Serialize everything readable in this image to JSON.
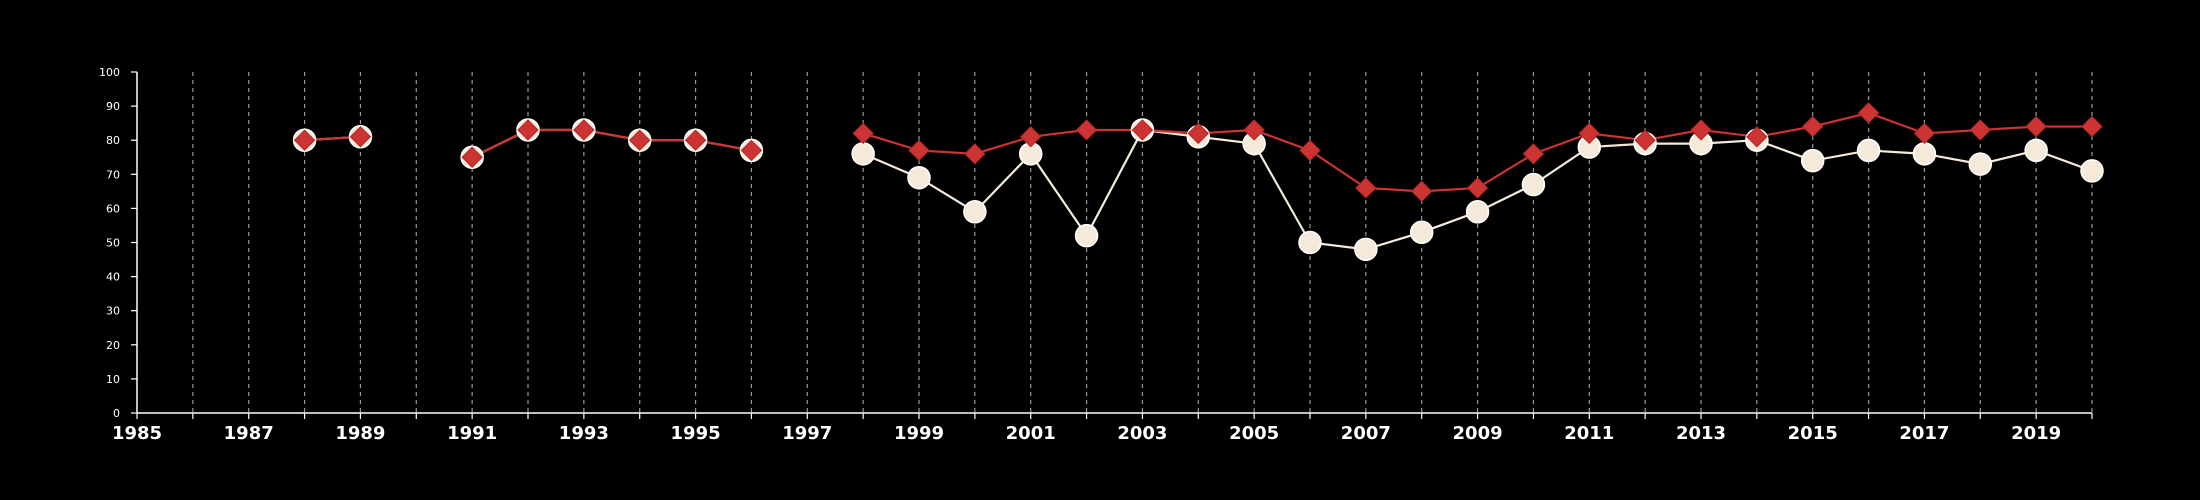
{
  "chart_data": {
    "type": "line",
    "title": "",
    "xlabel": "",
    "ylabel": "",
    "xlim": [
      1985,
      2020
    ],
    "ylim": [
      0,
      100
    ],
    "y_ticks": [
      0,
      10,
      20,
      30,
      40,
      50,
      60,
      70,
      80,
      90,
      100
    ],
    "x_tick_labels": [
      1985,
      1987,
      1989,
      1991,
      1993,
      1995,
      1997,
      1999,
      2001,
      2003,
      2005,
      2007,
      2009,
      2011,
      2013,
      2015,
      2017,
      2019
    ],
    "vertical_gridlines": "dashed, every year",
    "legend": "none",
    "series": [
      {
        "marker": "diamond",
        "color": "#cc3333",
        "points": [
          [
            1988,
            80
          ],
          [
            1989,
            81
          ],
          [
            1991,
            75
          ],
          [
            1992,
            83
          ],
          [
            1993,
            83
          ],
          [
            1994,
            80
          ],
          [
            1995,
            80
          ],
          [
            1996,
            77
          ],
          [
            1998,
            82
          ],
          [
            1999,
            77
          ],
          [
            2000,
            76
          ],
          [
            2001,
            81
          ],
          [
            2002,
            83
          ],
          [
            2003,
            83
          ],
          [
            2004,
            82
          ],
          [
            2005,
            83
          ],
          [
            2006,
            77
          ],
          [
            2007,
            66
          ],
          [
            2008,
            65
          ],
          [
            2009,
            66
          ],
          [
            2010,
            76
          ],
          [
            2011,
            82
          ],
          [
            2012,
            80
          ],
          [
            2013,
            83
          ],
          [
            2014,
            81
          ],
          [
            2015,
            84
          ],
          [
            2016,
            88
          ],
          [
            2017,
            82
          ],
          [
            2018,
            83
          ],
          [
            2019,
            84
          ],
          [
            2020,
            84
          ]
        ]
      },
      {
        "marker": "circle",
        "color": "#f5ead9",
        "points": [
          [
            1988,
            80
          ],
          [
            1989,
            81
          ],
          [
            1991,
            75
          ],
          [
            1992,
            83
          ],
          [
            1993,
            83
          ],
          [
            1994,
            80
          ],
          [
            1995,
            80
          ],
          [
            1996,
            77
          ],
          [
            1998,
            76
          ],
          [
            1999,
            69
          ],
          [
            2000,
            59
          ],
          [
            2001,
            76
          ],
          [
            2002,
            52
          ],
          [
            2003,
            83
          ],
          [
            2004,
            81
          ],
          [
            2005,
            79
          ],
          [
            2006,
            50
          ],
          [
            2007,
            48
          ],
          [
            2008,
            53
          ],
          [
            2009,
            59
          ],
          [
            2010,
            67
          ],
          [
            2011,
            78
          ],
          [
            2012,
            79
          ],
          [
            2013,
            79
          ],
          [
            2014,
            80
          ],
          [
            2015,
            74
          ],
          [
            2016,
            77
          ],
          [
            2017,
            76
          ],
          [
            2018,
            73
          ],
          [
            2019,
            77
          ],
          [
            2020,
            71
          ]
        ]
      }
    ]
  }
}
